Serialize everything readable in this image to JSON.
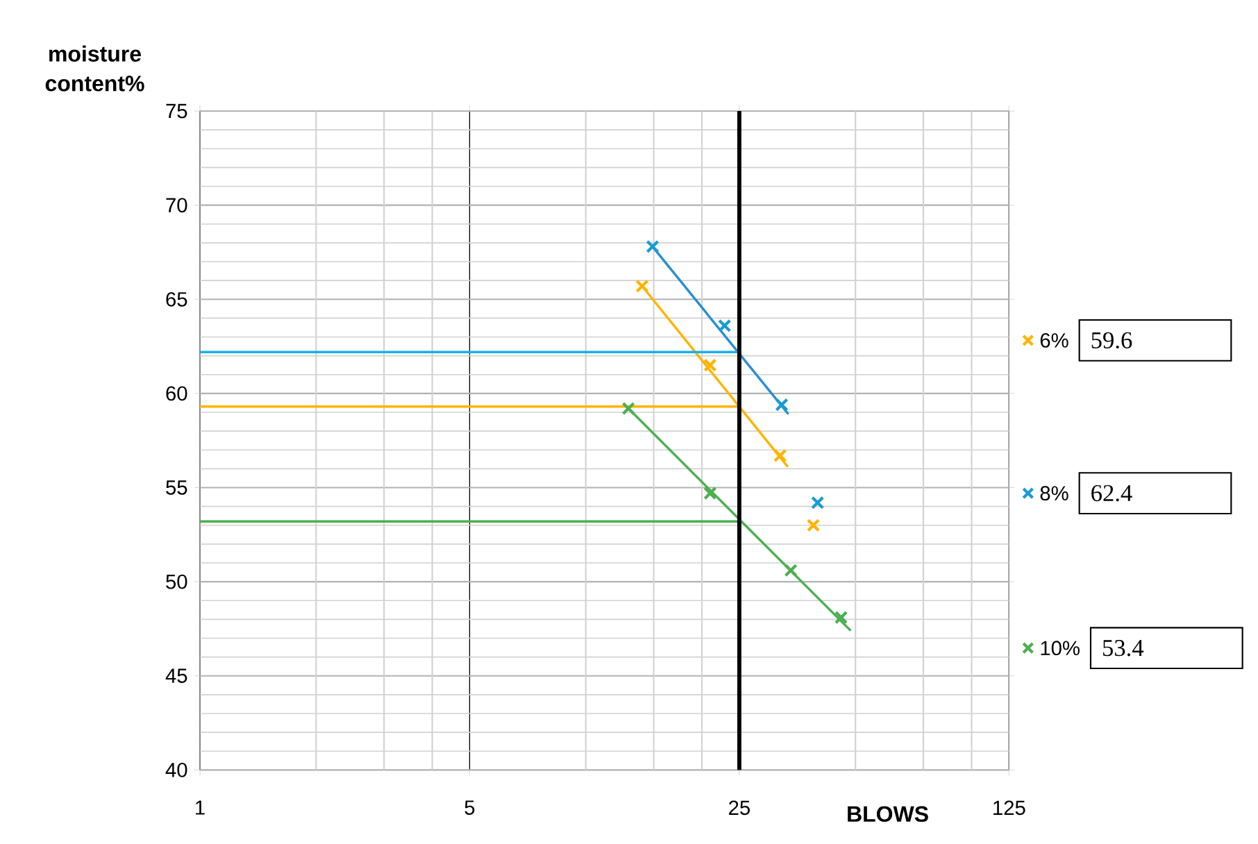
{
  "chart_data": {
    "type": "scatter",
    "xlabel": "BLOWS",
    "ylabel": "moisture content%",
    "log": "x",
    "xlim": [
      1,
      125
    ],
    "xticks": [
      1,
      5,
      25,
      125
    ],
    "ylim": [
      40,
      75
    ],
    "yticks": [
      40,
      45,
      50,
      55,
      60,
      65,
      70,
      75
    ],
    "grid": true,
    "legend": "right",
    "marker": "cross",
    "series": [
      {
        "name": "6%",
        "color": "#ffb400",
        "x": [
          14.0,
          21.0,
          31.9,
          38.9
        ],
        "values": [
          65.7,
          61.5,
          56.7,
          53.0
        ]
      },
      {
        "name": "8%",
        "color": "#1a9bd0",
        "x": [
          14.9,
          22.9,
          32.2,
          39.9
        ],
        "values": [
          67.8,
          63.6,
          59.4,
          54.2
        ]
      },
      {
        "name": "10%",
        "color": "#4caf50",
        "x": [
          12.9,
          21.0,
          34.0,
          45.9
        ],
        "values": [
          59.2,
          54.7,
          50.6,
          48.1
        ]
      },
      {
        "type": "line",
        "marker": "none",
        "color": "#ffb400",
        "x": [
          14.0,
          33.4
        ],
        "values": [
          65.7,
          56.1
        ]
      },
      {
        "type": "line",
        "marker": "none",
        "color": "#2a8fd0",
        "x": [
          14.9,
          33.5
        ],
        "values": [
          67.8,
          58.9
        ]
      },
      {
        "type": "line",
        "marker": "none",
        "color": "#4caf50",
        "x": [
          12.9,
          48.6
        ],
        "values": [
          59.2,
          47.4
        ]
      },
      {
        "type": "line",
        "marker": "none",
        "color": "#1ab0e8",
        "x": [
          1,
          25
        ],
        "values": [
          62.2,
          62.2
        ]
      },
      {
        "type": "line",
        "marker": "none",
        "color": "#ffb400",
        "x": [
          1,
          25
        ],
        "values": [
          59.3,
          59.3
        ]
      },
      {
        "type": "line",
        "marker": "none",
        "color": "#4caf50",
        "x": [
          1,
          25
        ],
        "values": [
          53.2,
          53.2
        ]
      }
    ],
    "ref_lines": [
      {
        "axis": "x",
        "value": 25,
        "color": "#000000"
      }
    ],
    "annotations": [
      "59.6",
      "62.4",
      "53.4"
    ]
  }
}
